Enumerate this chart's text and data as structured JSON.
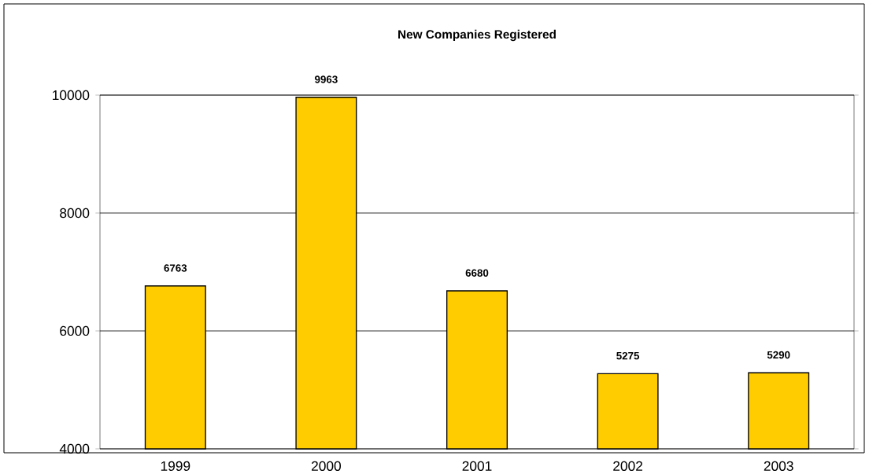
{
  "chart_data": {
    "type": "bar",
    "title": "New Companies Registered",
    "categories": [
      "1999",
      "2000",
      "2001",
      "2002",
      "2003"
    ],
    "values": [
      6763,
      9963,
      6680,
      5275,
      5290
    ],
    "color": "#ffcc00",
    "ylim": [
      4000,
      10000
    ],
    "yticks": [
      4000,
      6000,
      8000,
      10000
    ],
    "grid": "y",
    "data_labels": true
  }
}
